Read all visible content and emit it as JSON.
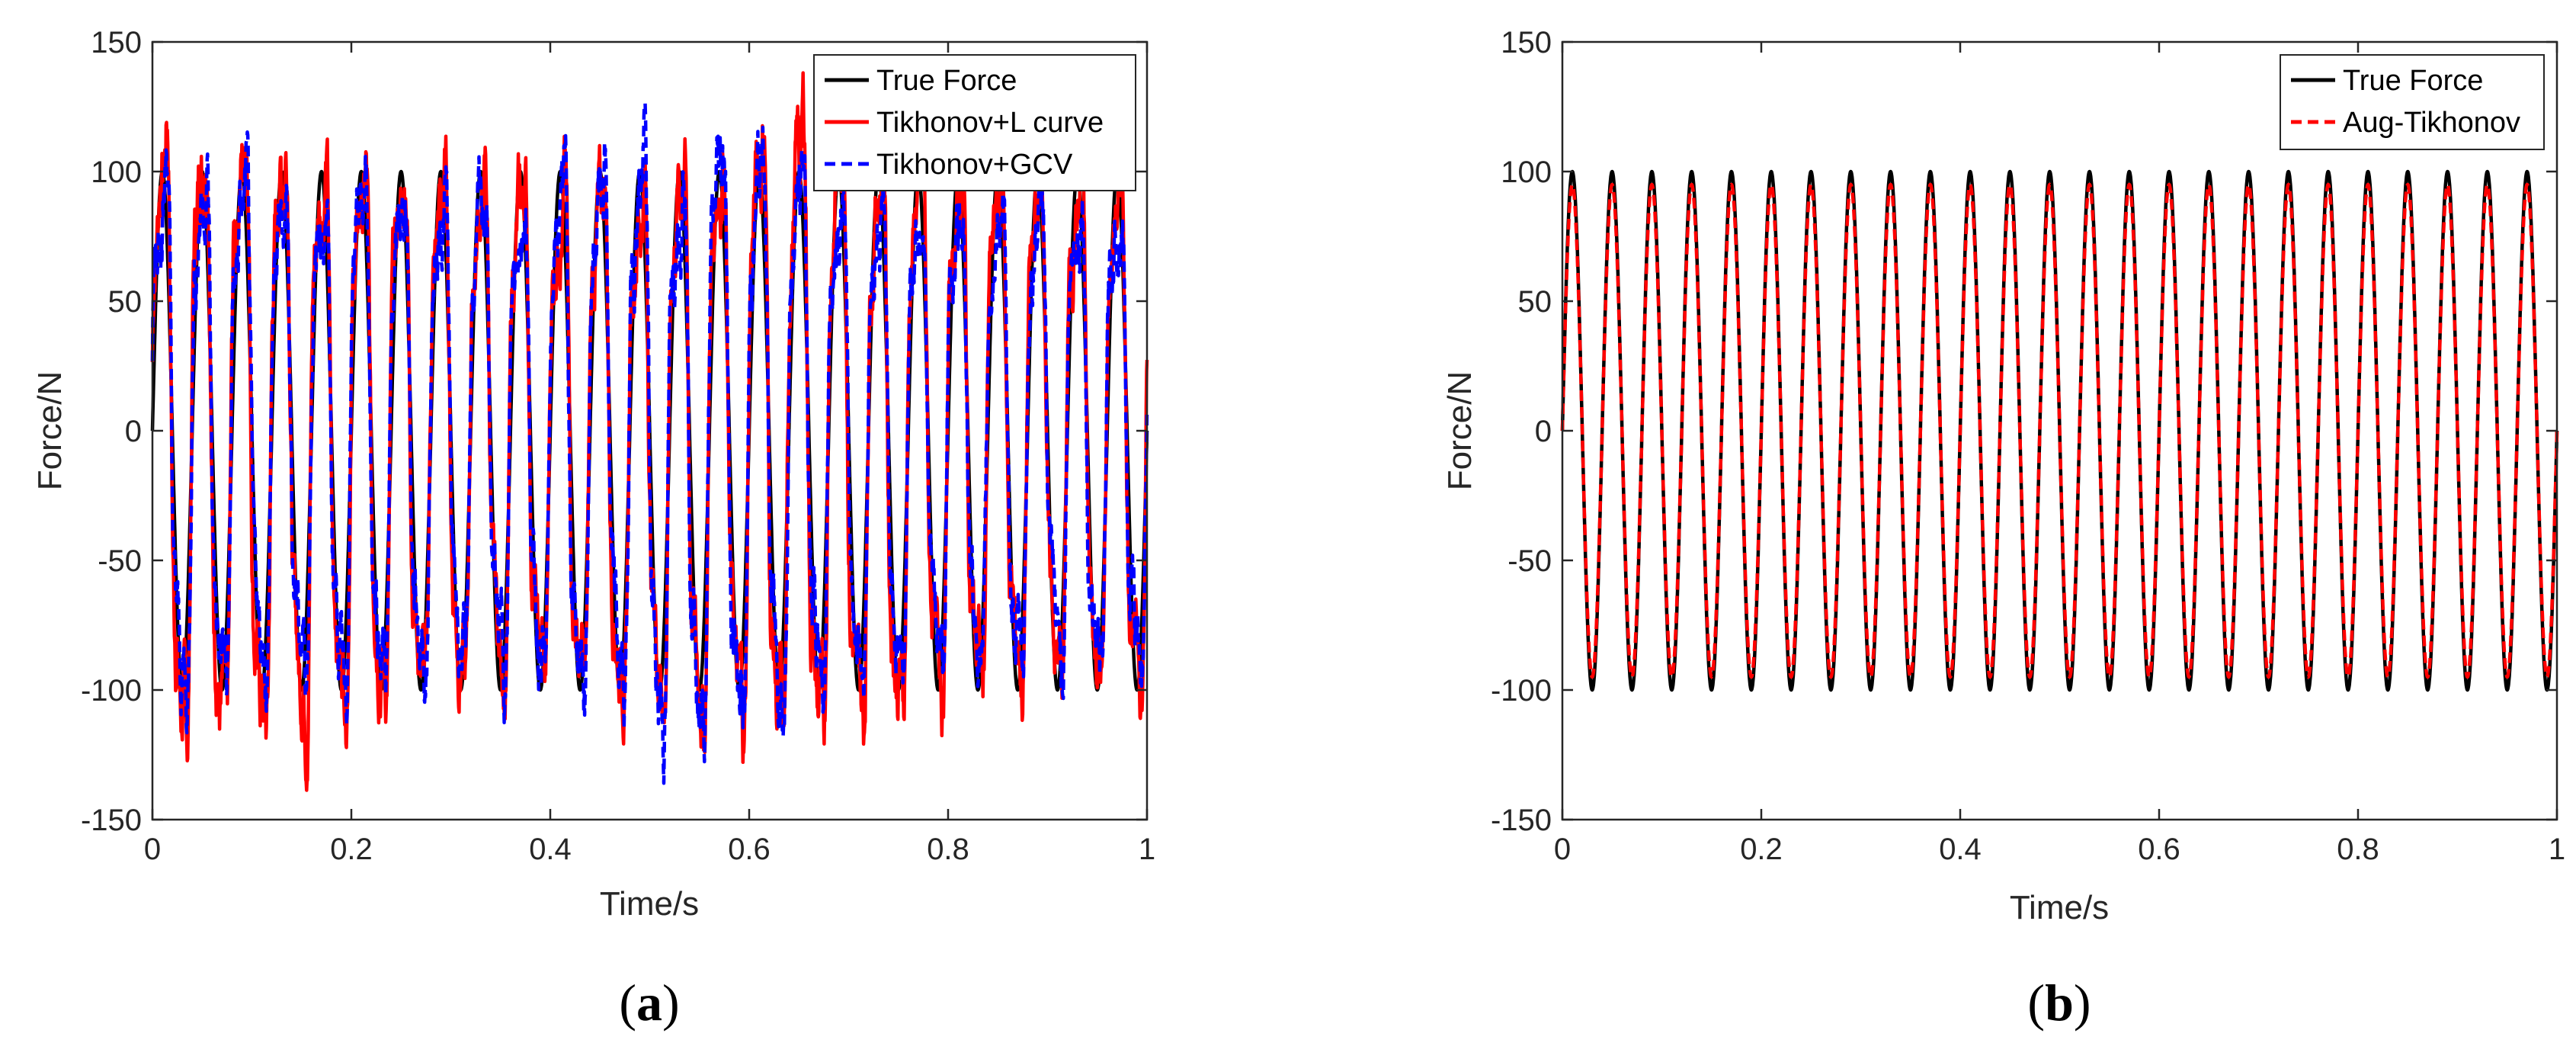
{
  "figure": {
    "panels": [
      {
        "caption_open": "(",
        "caption_letter": "a",
        "caption_close": ")"
      },
      {
        "caption_open": "(",
        "caption_letter": "b",
        "caption_close": ")"
      }
    ]
  },
  "colors": {
    "true_force": "#000000",
    "l_curve": "#ff0000",
    "gcv": "#0000ff",
    "aug_tikhonov": "#ff0000"
  },
  "chart_data": [
    {
      "type": "line",
      "xlabel": "Time/s",
      "ylabel": "Force/N",
      "xlim": [
        0,
        1
      ],
      "ylim": [
        -150,
        150
      ],
      "xticks": [
        0,
        0.2,
        0.4,
        0.6,
        0.8,
        1
      ],
      "xtick_labels": [
        "0",
        "0.2",
        "0.4",
        "0.6",
        "0.8",
        "1"
      ],
      "yticks": [
        150,
        100,
        50,
        0,
        -50,
        -100,
        -150
      ],
      "ytick_labels": [
        "150",
        "100",
        "50",
        "0",
        "-50",
        "-100",
        "-150"
      ],
      "legend_position": "top-right",
      "series": [
        {
          "name": "True Force",
          "style": "solid",
          "color": "#000000",
          "function": "100*sin(2*pi*25*t)",
          "amplitude": 100,
          "frequency_hz": 25
        },
        {
          "name": "Tikhonov+L curve",
          "style": "solid",
          "color": "#ff0000",
          "description": "noisy reconstruction oscillating at 25 Hz with peaks up to ~145 and troughs down to ~-145",
          "approx_peak": 145,
          "approx_trough": -145
        },
        {
          "name": "Tikhonov+GCV",
          "style": "dashed",
          "color": "#0000ff",
          "description": "noisy reconstruction oscillating at 25 Hz with peaks up to ~130 and troughs down to ~-130",
          "approx_peak": 130,
          "approx_trough": -130
        }
      ]
    },
    {
      "type": "line",
      "xlabel": "Time/s",
      "ylabel": "Force/N",
      "xlim": [
        0,
        1
      ],
      "ylim": [
        -150,
        150
      ],
      "xticks": [
        0,
        0.2,
        0.4,
        0.6,
        0.8,
        1
      ],
      "xtick_labels": [
        "0",
        "0.2",
        "0.4",
        "0.6",
        "0.8",
        "1"
      ],
      "yticks": [
        150,
        100,
        50,
        0,
        -50,
        -100,
        -150
      ],
      "ytick_labels": [
        "150",
        "100",
        "50",
        "0",
        "-50",
        "-100",
        "-150"
      ],
      "legend_position": "top-right",
      "series": [
        {
          "name": "True Force",
          "style": "solid",
          "color": "#000000",
          "function": "100*sin(2*pi*25*t)",
          "amplitude": 100,
          "frequency_hz": 25
        },
        {
          "name": "Aug-Tikhonov",
          "style": "dashed",
          "color": "#ff0000",
          "function": "~95*sin(2*pi*25*t)",
          "amplitude": 95,
          "frequency_hz": 25
        }
      ]
    }
  ]
}
